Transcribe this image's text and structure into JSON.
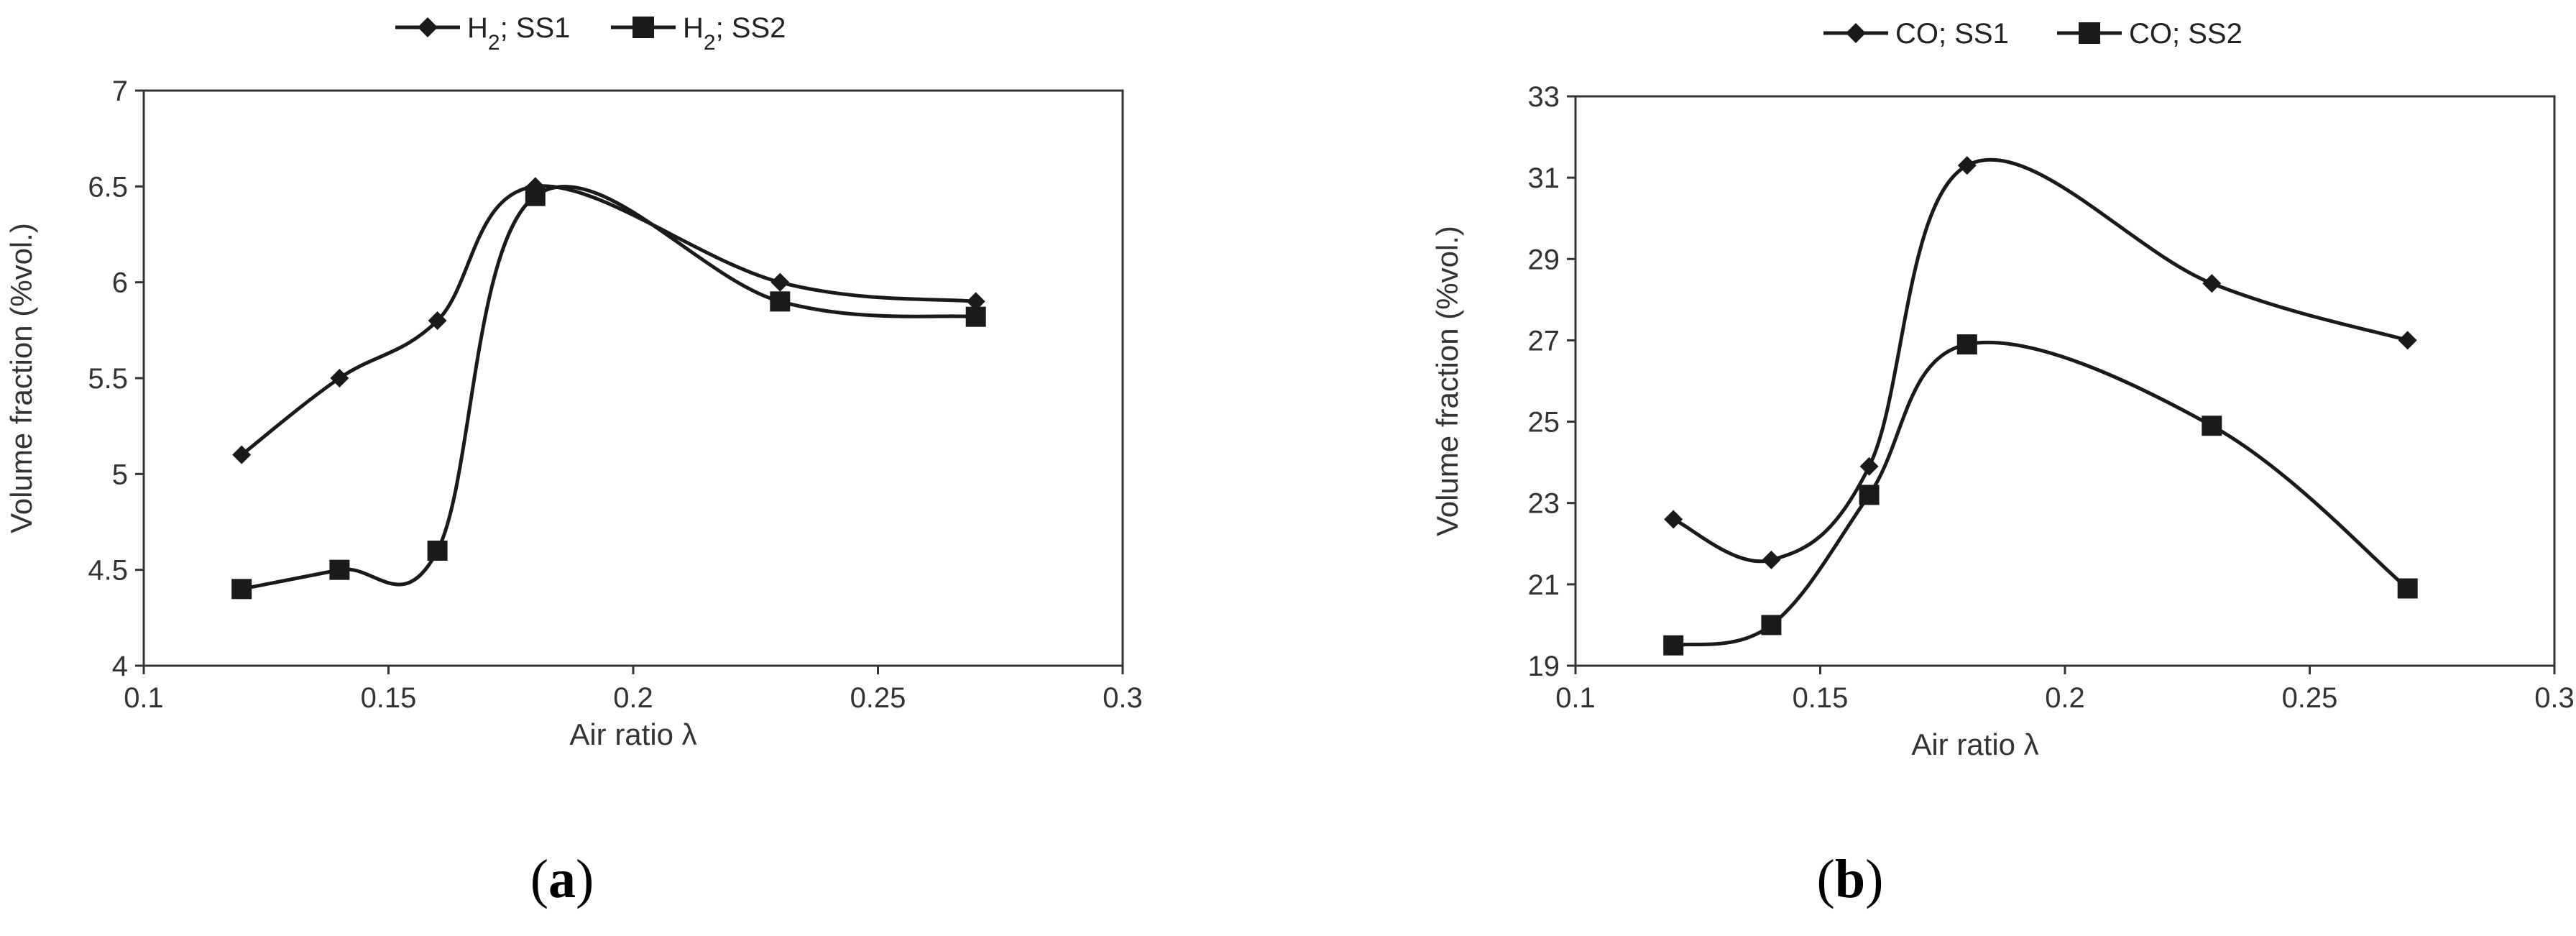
{
  "chart_data": [
    {
      "type": "line",
      "panel_label": "a",
      "xlabel": "Air ratio λ",
      "ylabel": "Volume fraction (%vol.)",
      "xlim": [
        0.1,
        0.3
      ],
      "ylim": [
        4,
        7
      ],
      "x_ticks": [
        "0.1",
        "0.15",
        "0.2",
        "0.25",
        "0.3"
      ],
      "y_ticks": [
        "4",
        "4.5",
        "5",
        "5.5",
        "6",
        "6.5",
        "7"
      ],
      "grid": false,
      "legend_position": "top-center",
      "x": [
        0.12,
        0.14,
        0.16,
        0.18,
        0.23,
        0.27
      ],
      "series": [
        {
          "name_main": "H",
          "name_sub": "2",
          "name_rest": "; SS1",
          "marker": "diamond",
          "values": [
            5.1,
            5.5,
            5.8,
            6.5,
            6.0,
            5.9
          ]
        },
        {
          "name_main": "H",
          "name_sub": "2",
          "name_rest": "; SS2",
          "marker": "square",
          "values": [
            4.4,
            4.5,
            4.6,
            6.45,
            5.9,
            5.82
          ]
        }
      ]
    },
    {
      "type": "line",
      "panel_label": "b",
      "xlabel": "Air ratio λ",
      "ylabel": "Volume fraction (%vol.)",
      "xlim": [
        0.1,
        0.3
      ],
      "ylim": [
        19,
        33
      ],
      "x_ticks": [
        "0.1",
        "0.15",
        "0.2",
        "0.25",
        "0.3"
      ],
      "y_ticks": [
        "19",
        "21",
        "23",
        "25",
        "27",
        "29",
        "31",
        "33"
      ],
      "grid": false,
      "legend_position": "top-center",
      "x": [
        0.12,
        0.14,
        0.16,
        0.18,
        0.23,
        0.27
      ],
      "series": [
        {
          "name_main": "CO; SS1",
          "name_sub": "",
          "name_rest": "",
          "marker": "diamond",
          "values": [
            22.6,
            21.6,
            23.9,
            31.3,
            28.4,
            27.0
          ]
        },
        {
          "name_main": "CO; SS2",
          "name_sub": "",
          "name_rest": "",
          "marker": "square",
          "values": [
            19.5,
            20.0,
            23.2,
            26.9,
            24.9,
            20.9
          ]
        }
      ]
    }
  ],
  "captions": {
    "a": "a",
    "b": "b"
  },
  "colors": {
    "line": "#1a1a1a",
    "frame": "#333333"
  }
}
